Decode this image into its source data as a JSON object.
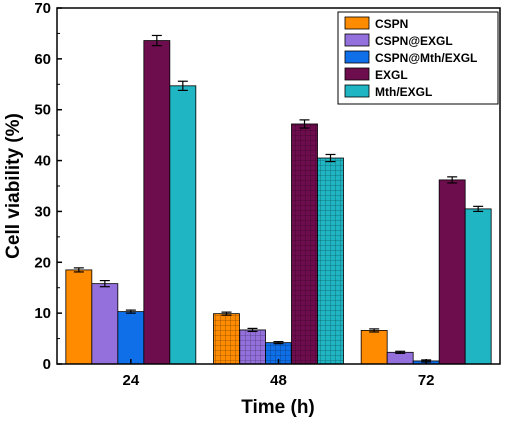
{
  "chart_data": {
    "type": "bar",
    "xlabel": "Time (h)",
    "ylabel": "Cell viability (%)",
    "ylim": [
      0,
      70
    ],
    "yticks": [
      0,
      10,
      20,
      30,
      40,
      50,
      60,
      70
    ],
    "categories": [
      "24",
      "48",
      "72"
    ],
    "series": [
      {
        "name": "CSPN",
        "color": "#FF8C00",
        "values": [
          18.5,
          9.9,
          6.6
        ],
        "errors": [
          0.4,
          0.3,
          0.3
        ]
      },
      {
        "name": "CSPN@EXGL",
        "color": "#9370DB",
        "values": [
          15.8,
          6.7,
          2.3
        ],
        "errors": [
          0.6,
          0.3,
          0.2
        ]
      },
      {
        "name": "CSPN@Mth/EXGL",
        "color": "#0F6FE8",
        "values": [
          10.3,
          4.2,
          0.6
        ],
        "errors": [
          0.3,
          0.2,
          0.2
        ]
      },
      {
        "name": "EXGL",
        "color": "#6E0D4E",
        "values": [
          63.6,
          47.2,
          36.2
        ],
        "errors": [
          1.0,
          0.8,
          0.6
        ]
      },
      {
        "name": "Mth/EXGL",
        "color": "#1FB5C3",
        "values": [
          54.7,
          40.5,
          30.5
        ],
        "errors": [
          0.9,
          0.7,
          0.5
        ]
      }
    ],
    "hatched_category": "48",
    "legend_position": "top-right",
    "grid": false
  }
}
